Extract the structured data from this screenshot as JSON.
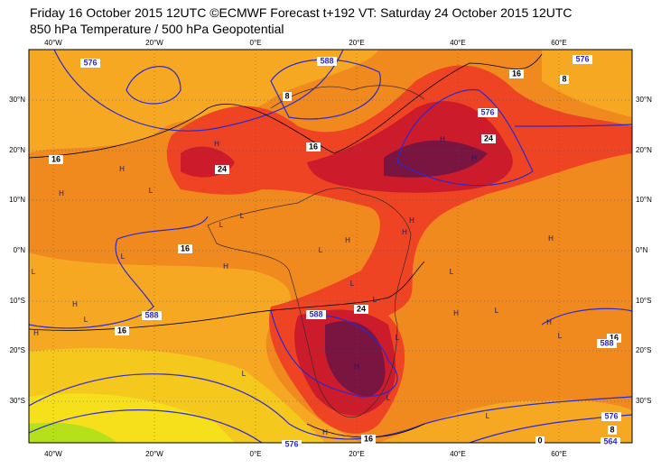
{
  "header": {
    "line1": "Friday 16 October 2015 12UTC ©ECMWF Forecast t+192 VT: Saturday 24 October 2015 12UTC",
    "line2": "850 hPa Temperature / 500 hPa Geopotential"
  },
  "map": {
    "lon_labels": [
      "40°W",
      "20°W",
      "0°E",
      "20°E",
      "40°E",
      "60°E"
    ],
    "lat_labels": [
      "30°N",
      "20°N",
      "10°N",
      "0°N",
      "10°S",
      "20°S",
      "30°S"
    ],
    "contour_labels": [
      "576",
      "8",
      "588",
      "16",
      "8",
      "576",
      "576",
      "24",
      "16",
      "24",
      "16",
      "16",
      "588",
      "16",
      "24",
      "588",
      "16",
      "576",
      "16",
      "588",
      "576",
      "8",
      "564",
      "0"
    ],
    "pressure_labels": [
      "H",
      "H",
      "L",
      "H",
      "L",
      "L",
      "H",
      "L",
      "L",
      "H",
      "L",
      "H",
      "L",
      "H",
      "L",
      "L",
      "H",
      "H",
      "H",
      "H",
      "H",
      "L",
      "H",
      "L",
      "H",
      "L",
      "H",
      "L",
      "H",
      "L",
      "L",
      "L"
    ]
  }
}
